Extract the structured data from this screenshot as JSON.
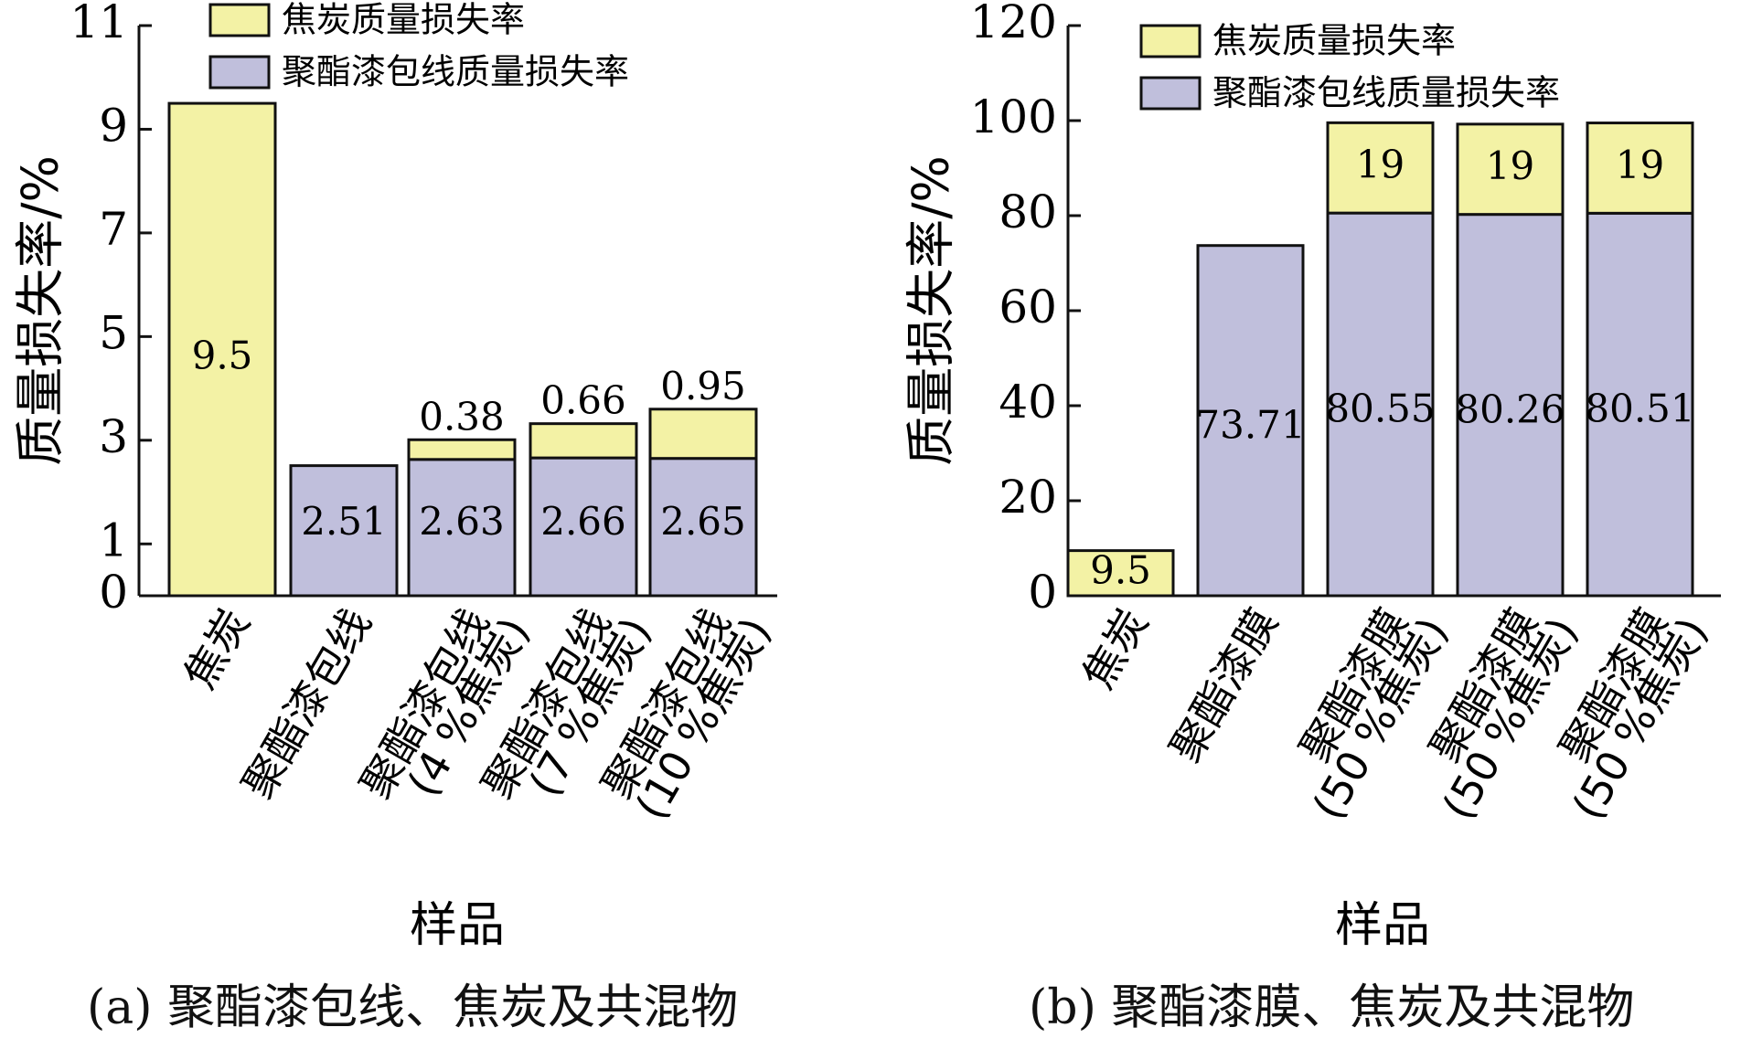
{
  "colors": {
    "coke": "#f3f2a5",
    "enamel": "#c0bfdc",
    "stroke": "#111111"
  },
  "panels": {
    "a": {
      "caption": "(a) 聚酯漆包线、焦炭及共混物"
    },
    "b": {
      "caption": "(b) 聚酯漆膜、焦炭及共混物"
    }
  },
  "chart_data": [
    {
      "type": "bar",
      "stacked": true,
      "ylabel": "质量损失率/%",
      "xlabel": "样品",
      "ylim": [
        0,
        11
      ],
      "yticks": [
        0,
        1,
        3,
        5,
        7,
        9,
        11
      ],
      "legend": {
        "position": "top"
      },
      "series": [
        {
          "name": "聚酯漆包线质量损失率",
          "color": "#c0bfdc",
          "values": [
            0,
            2.51,
            2.63,
            2.66,
            2.65
          ],
          "labels": [
            "",
            "2.51",
            "2.63",
            "2.66",
            "2.65"
          ]
        },
        {
          "name": "焦炭质量损失率",
          "color": "#f3f2a5",
          "values": [
            9.5,
            0,
            0.38,
            0.66,
            0.95
          ],
          "labels": [
            "9.5",
            "",
            "0.38",
            "0.66",
            "0.95"
          ]
        }
      ],
      "categories": [
        [
          "焦炭"
        ],
        [
          "聚酯漆包线"
        ],
        [
          "聚酯漆包线",
          "(4 %焦炭)"
        ],
        [
          "聚酯漆包线",
          "(7 %焦炭)"
        ],
        [
          "聚酯漆包线",
          "(10 %焦炭)"
        ]
      ]
    },
    {
      "type": "bar",
      "stacked": true,
      "ylabel": "质量损失率/%",
      "xlabel": "样品",
      "ylim": [
        0,
        120
      ],
      "yticks": [
        0,
        20,
        40,
        60,
        80,
        100,
        120
      ],
      "legend": {
        "position": "top"
      },
      "series": [
        {
          "name": "聚酯漆包线质量损失率",
          "color": "#c0bfdc",
          "values": [
            0,
            73.71,
            80.55,
            80.26,
            80.51
          ],
          "labels": [
            "",
            "73.71",
            "80.55",
            "80.26",
            "80.51"
          ]
        },
        {
          "name": "焦炭质量损失率",
          "color": "#f3f2a5",
          "values": [
            9.5,
            0,
            19,
            19,
            19
          ],
          "labels": [
            "9.5",
            "",
            "19",
            "19",
            "19"
          ]
        }
      ],
      "categories": [
        [
          "焦炭"
        ],
        [
          "聚酯漆膜"
        ],
        [
          "聚酯漆膜",
          "(50 %焦炭)"
        ],
        [
          "聚酯漆膜",
          "(50 %焦炭)"
        ],
        [
          "聚酯漆膜",
          "(50 %焦炭)"
        ]
      ]
    }
  ]
}
